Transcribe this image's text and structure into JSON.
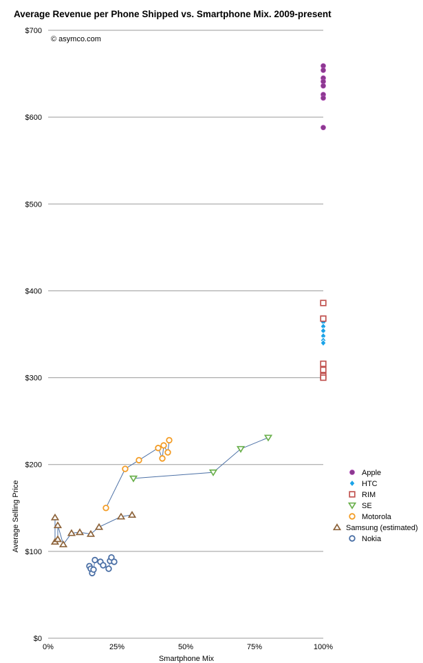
{
  "chart_data": {
    "type": "scatter",
    "title": "Average Revenue per Phone Shipped vs. Smartphone Mix. 2009-present",
    "credit": "© asymco.com",
    "xlabel": "Smartphone Mix",
    "ylabel": "Average Selling Price",
    "xlim": [
      0,
      100
    ],
    "ylim": [
      0,
      700
    ],
    "x_ticks": [
      0,
      25,
      50,
      75,
      100
    ],
    "x_tick_labels": [
      "0%",
      "25%",
      "50%",
      "75%",
      "100%"
    ],
    "y_ticks": [
      0,
      100,
      200,
      300,
      400,
      500,
      600,
      700
    ],
    "y_tick_labels": [
      "$0",
      "$100",
      "$200",
      "$300",
      "$400",
      "$500",
      "$600",
      "$700"
    ],
    "grid": "horizontal",
    "legend_position": "right",
    "connector_color": "#4a6fa5",
    "series": [
      {
        "name": "Apple",
        "marker": "filled-circle",
        "color": "#8b3a8f",
        "connected": false,
        "points": [
          [
            100,
            659
          ],
          [
            100,
            654
          ],
          [
            100,
            645
          ],
          [
            100,
            641
          ],
          [
            100,
            636
          ],
          [
            100,
            626
          ],
          [
            100,
            622
          ],
          [
            100,
            588
          ]
        ]
      },
      {
        "name": "HTC",
        "marker": "diamond",
        "color": "#1aa3e8",
        "connected": false,
        "points": [
          [
            100,
            364
          ],
          [
            100,
            359
          ],
          [
            100,
            354
          ],
          [
            100,
            348
          ],
          [
            100,
            343
          ],
          [
            100,
            340
          ]
        ]
      },
      {
        "name": "RIM",
        "marker": "square",
        "color": "#c0504d",
        "connected": false,
        "points": [
          [
            100,
            386
          ],
          [
            100,
            368
          ],
          [
            100,
            316
          ],
          [
            100,
            309
          ],
          [
            100,
            302
          ],
          [
            100,
            300
          ]
        ]
      },
      {
        "name": "SE",
        "marker": "triangle-down",
        "color": "#6ab04c",
        "connected": true,
        "points": [
          [
            31,
            184
          ],
          [
            60,
            191
          ],
          [
            70,
            218
          ],
          [
            80,
            231
          ]
        ]
      },
      {
        "name": "Motorola",
        "marker": "open-circle",
        "color": "#f39c25",
        "connected": true,
        "points": [
          [
            21,
            150
          ],
          [
            28,
            195
          ],
          [
            33,
            205
          ],
          [
            40,
            219
          ],
          [
            41.5,
            207
          ],
          [
            42,
            222
          ],
          [
            43.5,
            214
          ],
          [
            44,
            228
          ]
        ]
      },
      {
        "name": "Samsung (estimated)",
        "marker": "triangle-up",
        "color": "#8c6239",
        "connected": true,
        "points": [
          [
            2.5,
            139
          ],
          [
            2.5,
            111
          ],
          [
            3.5,
            114
          ],
          [
            3.5,
            130
          ],
          [
            5.5,
            108
          ],
          [
            8.5,
            121
          ],
          [
            11.5,
            122
          ],
          [
            15.5,
            120
          ],
          [
            18.5,
            128
          ],
          [
            26.5,
            140
          ],
          [
            30.5,
            142
          ]
        ]
      },
      {
        "name": "Nokia",
        "marker": "open-circle",
        "color": "#4a6fa5",
        "connected": true,
        "points": [
          [
            15,
            83
          ],
          [
            15.5,
            80
          ],
          [
            16,
            75
          ],
          [
            16.5,
            79
          ],
          [
            17,
            90
          ],
          [
            19,
            88
          ],
          [
            20,
            84
          ],
          [
            22,
            80
          ],
          [
            22.5,
            89
          ],
          [
            23,
            93
          ],
          [
            24,
            88
          ]
        ]
      }
    ]
  }
}
